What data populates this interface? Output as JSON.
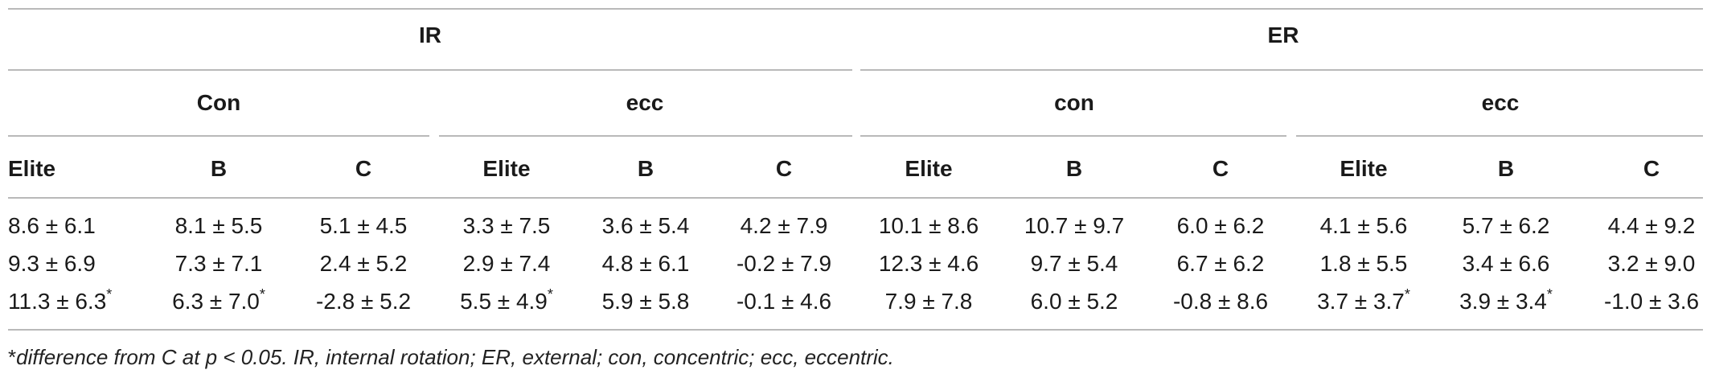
{
  "groups": [
    "IR",
    "ER"
  ],
  "subgroups": [
    "Con",
    "ecc",
    "con",
    "ecc"
  ],
  "columns": [
    "Elite",
    "B",
    "C",
    "Elite",
    "B",
    "C",
    "Elite",
    "B",
    "C",
    "Elite",
    "B",
    "C"
  ],
  "rows": [
    [
      "8.6 ± 6.1",
      "8.1 ± 5.5",
      "5.1 ± 4.5",
      "3.3 ± 7.5",
      "3.6 ± 5.4",
      "4.2 ± 7.9",
      "10.1 ± 8.6",
      "10.7 ± 9.7",
      "6.0 ± 6.2",
      "4.1 ± 5.6",
      "5.7 ± 6.2",
      "4.4 ± 9.2"
    ],
    [
      "9.3 ± 6.9",
      "7.3 ± 7.1",
      "2.4 ± 5.2",
      "2.9 ± 7.4",
      "4.8 ± 6.1",
      "-0.2 ± 7.9",
      "12.3 ± 4.6",
      "9.7 ± 5.4",
      "6.7 ± 6.2",
      "1.8 ± 5.5",
      "3.4 ± 6.6",
      "3.2 ± 9.0"
    ],
    [
      "11.3 ± 6.3",
      "6.3 ± 7.0",
      "-2.8 ± 5.2",
      "5.5 ± 4.9",
      "5.9 ± 5.8",
      "-0.1 ± 4.6",
      "7.9 ± 7.8",
      "6.0 ± 5.2",
      "-0.8 ± 8.6",
      "3.7 ± 3.7",
      "3.9 ± 3.4",
      "-1.0 ± 3.6"
    ]
  ],
  "row3_marks": [
    "*",
    "*",
    "",
    "*",
    "",
    "",
    "",
    "",
    "",
    "*",
    "*",
    ""
  ],
  "footnote": {
    "star": "*",
    "text": "difference from C at p < 0.05. IR, internal rotation; ER, external; con, concentric; ecc, eccentric."
  }
}
